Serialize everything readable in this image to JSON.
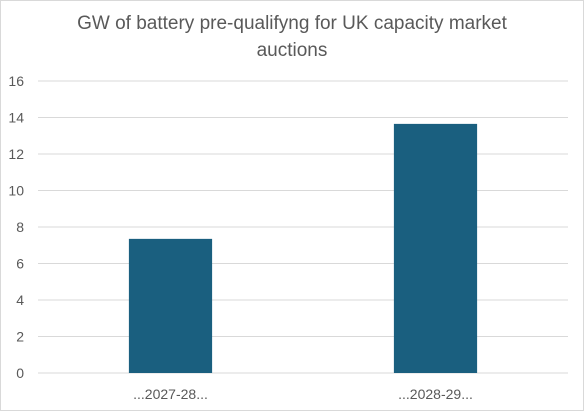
{
  "chart_data": {
    "type": "bar",
    "title_lines": [
      "GW of battery pre-qualifyng for UK capacity market",
      "auctions"
    ],
    "categories": [
      "...2027-28...",
      "...2028-29..."
    ],
    "values": [
      7.35,
      13.65
    ],
    "ylim": [
      0,
      16
    ],
    "yticks": [
      0,
      2,
      4,
      6,
      8,
      10,
      12,
      14,
      16
    ],
    "grid": true,
    "legend": "none",
    "colors": {
      "bar": "#1a5f7f",
      "grid": "#d9d9d9",
      "text": "#595959"
    }
  }
}
